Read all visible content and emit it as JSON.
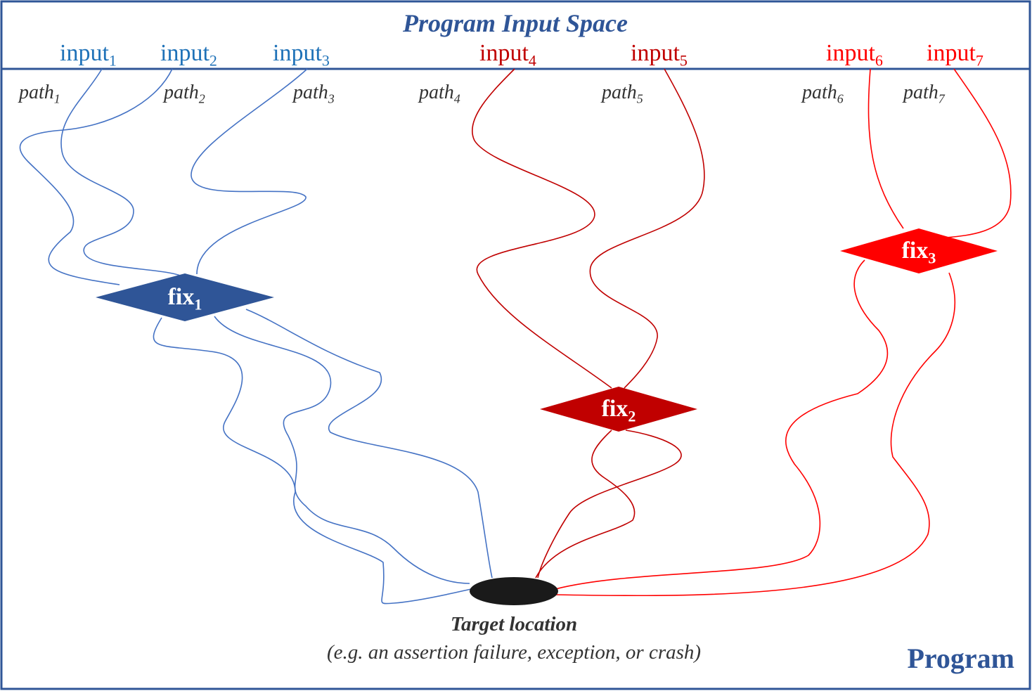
{
  "title": "Program Input  Space",
  "inputs": [
    {
      "text": "input",
      "sub": "1"
    },
    {
      "text": "input",
      "sub": "2"
    },
    {
      "text": "input",
      "sub": "3"
    },
    {
      "text": "input",
      "sub": "4"
    },
    {
      "text": "input",
      "sub": "5"
    },
    {
      "text": "input",
      "sub": "6"
    },
    {
      "text": "input",
      "sub": "7"
    }
  ],
  "paths": [
    {
      "text": "path",
      "sub": "1"
    },
    {
      "text": "path",
      "sub": "2"
    },
    {
      "text": "path",
      "sub": "3"
    },
    {
      "text": "path",
      "sub": "4"
    },
    {
      "text": "path",
      "sub": "5"
    },
    {
      "text": "path",
      "sub": "6"
    },
    {
      "text": "path",
      "sub": "7"
    }
  ],
  "fixes": [
    {
      "text": "fix",
      "sub": "1"
    },
    {
      "text": "fix",
      "sub": "2"
    },
    {
      "text": "fix",
      "sub": "3"
    }
  ],
  "target": {
    "title": "Target location",
    "note": "(e.g. an assertion failure, exception, or crash)"
  },
  "program": "Program"
}
